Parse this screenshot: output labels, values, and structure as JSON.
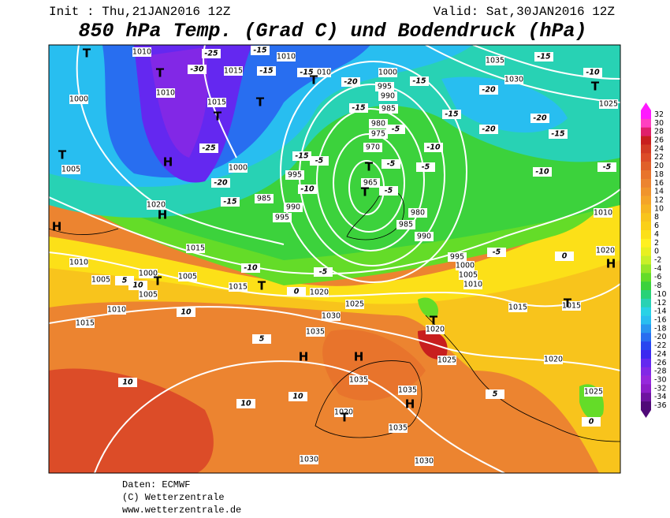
{
  "header": {
    "init": "Init : Thu,21JAN2016 12Z",
    "valid": "Valid: Sat,30JAN2016 12Z",
    "title": "850 hPa Temp. (Grad C) und Bodendruck (hPa)"
  },
  "colorbar": {
    "levels": [
      32,
      30,
      28,
      26,
      24,
      22,
      20,
      18,
      16,
      14,
      12,
      10,
      8,
      6,
      4,
      2,
      0,
      -2,
      -4,
      -6,
      -8,
      -10,
      -12,
      -14,
      -16,
      -18,
      -20,
      -22,
      -24,
      -26,
      -28,
      -30,
      -32,
      -34,
      -36
    ],
    "colors": [
      "#ff19ff",
      "#ff40c0",
      "#e0206a",
      "#c81e1e",
      "#d23a24",
      "#dc4c28",
      "#e0602a",
      "#e8742c",
      "#ec8430",
      "#f0942c",
      "#f4a428",
      "#f6b422",
      "#f8c41c",
      "#fad018",
      "#fce018",
      "#fff020",
      "#e8f020",
      "#c8f028",
      "#96e628",
      "#64dc28",
      "#3cd23c",
      "#28d278",
      "#28d2b4",
      "#28d2e6",
      "#28bef0",
      "#2896f0",
      "#286ef0",
      "#2846f0",
      "#3c28f0",
      "#6428f0",
      "#8228e6",
      "#9628dc",
      "#8c1ec8",
      "#6e14a0",
      "#500a78"
    ]
  },
  "map_labels": {
    "isobars": [
      1010,
      1015,
      1010,
      1015,
      1000,
      1010,
      1010,
      1000,
      995,
      990,
      985,
      980,
      975,
      970,
      965,
      1005,
      1000,
      995,
      985,
      990,
      995,
      1020,
      1015,
      1010,
      1000,
      1005,
      1005,
      1005,
      1010,
      1015,
      1015,
      1020,
      1025,
      1030,
      1035,
      1035,
      1035,
      1020,
      1035,
      1030,
      1030,
      1025,
      1020,
      1020,
      1025,
      1015,
      1015,
      1010,
      1005,
      1000,
      995,
      990,
      985,
      980,
      1035,
      1030,
      1025,
      1020,
      1010
    ],
    "temperatures": [
      -25,
      -30,
      -15,
      -15,
      -15,
      -20,
      -15,
      -20,
      -15,
      -10,
      -15,
      -15,
      -5,
      -10,
      -5,
      -15,
      -10,
      -20,
      -15,
      -25,
      -5,
      -5,
      -5,
      -10,
      -5,
      -20,
      -15,
      -20,
      -5,
      -10,
      -5,
      0,
      0,
      5,
      10,
      10,
      5,
      10,
      10,
      10,
      5,
      0
    ],
    "pressure_centers": [
      "T",
      "T",
      "T",
      "T",
      "T",
      "T",
      "T",
      "T",
      "T",
      "T",
      "T",
      "T",
      "T",
      "T",
      "H",
      "H",
      "H",
      "H",
      "H",
      "H",
      "H"
    ]
  },
  "footer": {
    "source": "Daten: ECMWF",
    "copyright": "(C) Wetterzentrale",
    "url": "www.wetterzentrale.de"
  }
}
